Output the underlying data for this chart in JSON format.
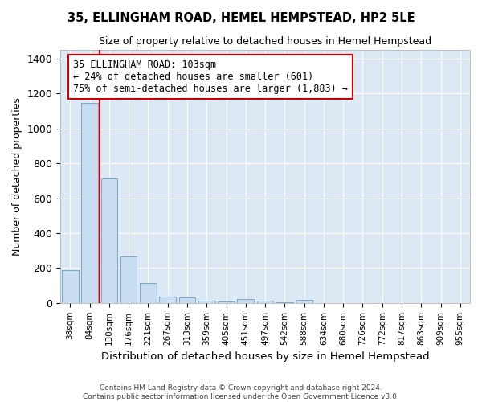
{
  "title1": "35, ELLINGHAM ROAD, HEMEL HEMPSTEAD, HP2 5LE",
  "title2": "Size of property relative to detached houses in Hemel Hempstead",
  "xlabel": "Distribution of detached houses by size in Hemel Hempstead",
  "ylabel": "Number of detached properties",
  "categories": [
    "38sqm",
    "84sqm",
    "130sqm",
    "176sqm",
    "221sqm",
    "267sqm",
    "313sqm",
    "359sqm",
    "405sqm",
    "451sqm",
    "497sqm",
    "542sqm",
    "588sqm",
    "634sqm",
    "680sqm",
    "726sqm",
    "772sqm",
    "817sqm",
    "863sqm",
    "909sqm",
    "955sqm"
  ],
  "values": [
    190,
    1145,
    715,
    265,
    115,
    38,
    30,
    15,
    10,
    22,
    12,
    5,
    18,
    0,
    0,
    0,
    0,
    0,
    0,
    0,
    0
  ],
  "bar_color": "#c8ddf0",
  "bar_edge_color": "#7aaac8",
  "vline_color": "#cc0000",
  "annotation_text": "35 ELLINGHAM ROAD: 103sqm\n← 24% of detached houses are smaller (601)\n75% of semi-detached houses are larger (1,883) →",
  "annotation_box_color": "#ffffff",
  "annotation_box_edge": "#cc0000",
  "ylim": [
    0,
    1450
  ],
  "yticks": [
    0,
    200,
    400,
    600,
    800,
    1000,
    1200,
    1400
  ],
  "background_color": "#dde8f5",
  "grid_color": "#ffffff",
  "fig_background": "#ffffff",
  "footer1": "Contains HM Land Registry data © Crown copyright and database right 2024.",
  "footer2": "Contains public sector information licensed under the Open Government Licence v3.0."
}
